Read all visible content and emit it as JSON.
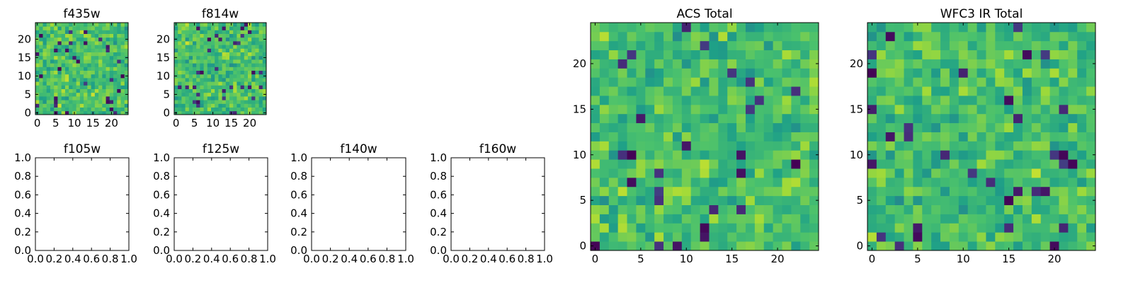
{
  "chart_data": [
    {
      "type": "heatmap",
      "title": "f435w",
      "xlabel": "",
      "ylabel": "",
      "xlim": [
        -0.5,
        24.5
      ],
      "ylim": [
        -0.5,
        24.5
      ],
      "xticks": [
        0,
        5,
        10,
        15,
        20
      ],
      "yticks": [
        0,
        5,
        10,
        15,
        20
      ],
      "grid_size": [
        25,
        25
      ],
      "colormap": "viridis",
      "seed": 11
    },
    {
      "type": "heatmap",
      "title": "f814w",
      "xlabel": "",
      "ylabel": "",
      "xlim": [
        -0.5,
        24.5
      ],
      "ylim": [
        -0.5,
        24.5
      ],
      "xticks": [
        0,
        5,
        10,
        15,
        20
      ],
      "yticks": [
        0,
        5,
        10,
        15,
        20
      ],
      "grid_size": [
        25,
        25
      ],
      "colormap": "viridis",
      "seed": 23
    },
    {
      "type": "empty",
      "title": "f105w",
      "xlim": [
        0.0,
        1.0
      ],
      "ylim": [
        0.0,
        1.0
      ],
      "xticks": [
        "0.0",
        "0.2",
        "0.4",
        "0.6",
        "0.8",
        "1.0"
      ],
      "yticks": [
        "0.0",
        "0.2",
        "0.4",
        "0.6",
        "0.8",
        "1.0"
      ]
    },
    {
      "type": "empty",
      "title": "f125w",
      "xlim": [
        0.0,
        1.0
      ],
      "ylim": [
        0.0,
        1.0
      ],
      "xticks": [
        "0.0",
        "0.2",
        "0.4",
        "0.6",
        "0.8",
        "1.0"
      ],
      "yticks": [
        "0.0",
        "0.2",
        "0.4",
        "0.6",
        "0.8",
        "1.0"
      ]
    },
    {
      "type": "empty",
      "title": "f140w",
      "xlim": [
        0.0,
        1.0
      ],
      "ylim": [
        0.0,
        1.0
      ],
      "xticks": [
        "0.0",
        "0.2",
        "0.4",
        "0.6",
        "0.8",
        "1.0"
      ],
      "yticks": [
        "0.0",
        "0.2",
        "0.4",
        "0.6",
        "0.8",
        "1.0"
      ]
    },
    {
      "type": "empty",
      "title": "f160w",
      "xlim": [
        0.0,
        1.0
      ],
      "ylim": [
        0.0,
        1.0
      ],
      "xticks": [
        "0.0",
        "0.2",
        "0.4",
        "0.6",
        "0.8",
        "1.0"
      ],
      "yticks": [
        "0.0",
        "0.2",
        "0.4",
        "0.6",
        "0.8",
        "1.0"
      ]
    },
    {
      "type": "heatmap",
      "title": "ACS Total",
      "xlabel": "",
      "ylabel": "",
      "xlim": [
        -0.5,
        24.5
      ],
      "ylim": [
        -0.5,
        24.5
      ],
      "xticks": [
        0,
        5,
        10,
        15,
        20
      ],
      "yticks": [
        0,
        5,
        10,
        15,
        20
      ],
      "grid_size": [
        25,
        25
      ],
      "colormap": "viridis",
      "seed": 37
    },
    {
      "type": "heatmap",
      "title": "WFC3 IR Total",
      "xlabel": "",
      "ylabel": "",
      "xlim": [
        -0.5,
        24.5
      ],
      "ylim": [
        -0.5,
        24.5
      ],
      "xticks": [
        0,
        5,
        10,
        15,
        20
      ],
      "yticks": [
        0,
        5,
        10,
        15,
        20
      ],
      "grid_size": [
        25,
        25
      ],
      "colormap": "viridis",
      "seed": 59
    }
  ]
}
